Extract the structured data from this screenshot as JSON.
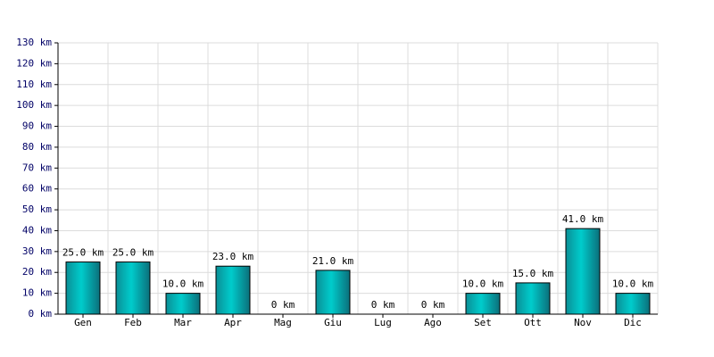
{
  "chart_data": {
    "type": "bar",
    "categories": [
      "Gen",
      "Feb",
      "Mar",
      "Apr",
      "Mag",
      "Giu",
      "Lug",
      "Ago",
      "Set",
      "Ott",
      "Nov",
      "Dic"
    ],
    "values": [
      25,
      25,
      10,
      23,
      0,
      21,
      0,
      0,
      10,
      15,
      41,
      10
    ],
    "value_labels": [
      "25.0 km",
      "25.0 km",
      "10.0 km",
      "23.0 km",
      "0 km",
      "21.0 km",
      "0 km",
      "0 km",
      "10.0 km",
      "15.0 km",
      "41.0 km",
      "10.0 km"
    ],
    "color": "#00cccc",
    "ylim": [
      0,
      130
    ],
    "yticks": [
      {
        "value": 0,
        "label": "0 km"
      },
      {
        "value": 10,
        "label": "10 km"
      },
      {
        "value": 20,
        "label": "20 km"
      },
      {
        "value": 30,
        "label": "30 km"
      },
      {
        "value": 40,
        "label": "40 km"
      },
      {
        "value": 50,
        "label": "50 km"
      },
      {
        "value": 60,
        "label": "60 km"
      },
      {
        "value": 70,
        "label": "70 km"
      },
      {
        "value": 80,
        "label": "80 km"
      },
      {
        "value": 90,
        "label": "90 km"
      },
      {
        "value": 100,
        "label": "100 km"
      },
      {
        "value": 110,
        "label": "110 km"
      },
      {
        "value": 120,
        "label": "120 km"
      },
      {
        "value": 130,
        "label": "130 km"
      }
    ],
    "grid": true
  }
}
